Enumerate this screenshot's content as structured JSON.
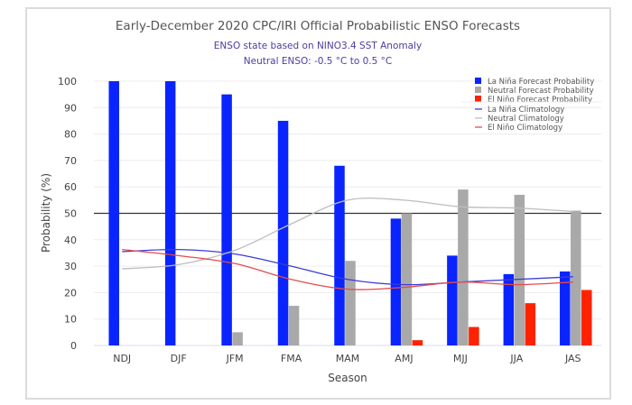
{
  "chart_data": {
    "type": "bar",
    "title": "Early-December 2020 CPC/IRI Official Probabilistic ENSO Forecasts",
    "subtitle_lines": [
      "ENSO state based on NINO3.4 SST Anomaly",
      "Neutral ENSO: -0.5 °C to 0.5 °C"
    ],
    "xlabel": "Season",
    "ylabel": "Probability (%)",
    "ylim": [
      0,
      100
    ],
    "yticks": [
      0,
      10,
      20,
      30,
      40,
      50,
      60,
      70,
      80,
      90,
      100
    ],
    "grid": true,
    "reference_line": 50,
    "legend_position": "top-right",
    "categories": [
      "NDJ",
      "DJF",
      "JFM",
      "FMA",
      "MAM",
      "AMJ",
      "MJJ",
      "JJA",
      "JAS"
    ],
    "series": [
      {
        "name": "La Niña Forecast Probability",
        "kind": "bar",
        "color": "#0a24ff",
        "values": [
          100,
          100,
          95,
          85,
          68,
          48,
          34,
          27,
          28
        ]
      },
      {
        "name": "Neutral Forecast Probability",
        "kind": "bar",
        "color": "#a9a9a9",
        "values": [
          0,
          0,
          5,
          15,
          32,
          50,
          59,
          57,
          51
        ]
      },
      {
        "name": "El Niño Forecast Probability",
        "kind": "bar",
        "color": "#ff2200",
        "values": [
          0,
          0,
          0,
          0,
          0,
          2,
          7,
          16,
          21
        ]
      },
      {
        "name": "La Niña Climatology",
        "kind": "line",
        "color": "#3b3bdb",
        "values": [
          35.5,
          36.3,
          34.6,
          30,
          25,
          23,
          24,
          25,
          26
        ]
      },
      {
        "name": "Neutral Climatology",
        "kind": "line",
        "color": "#bdbdbd",
        "values": [
          29,
          30.6,
          36,
          46,
          55,
          55,
          52.5,
          52,
          50.7
        ]
      },
      {
        "name": "El Niño Climatology",
        "kind": "line",
        "color": "#e84a4a",
        "values": [
          36.3,
          34,
          31,
          25,
          21.3,
          22,
          24,
          23,
          24
        ]
      }
    ]
  }
}
